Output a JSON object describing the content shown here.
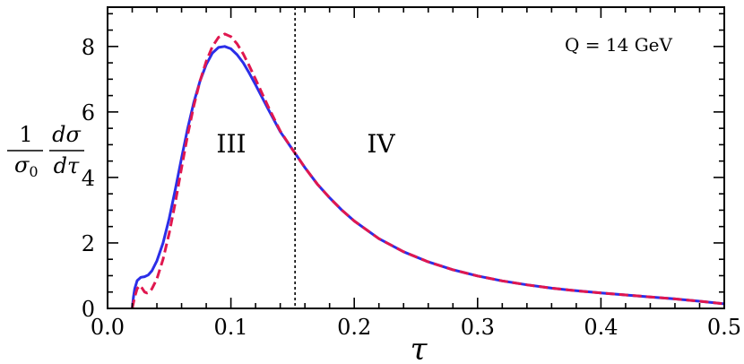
{
  "chart_data": {
    "type": "line",
    "title": "",
    "xlabel": "τ",
    "ylabel": {
      "numerator_left": "1",
      "denominator_left": "σ",
      "denominator_left_sub": "0",
      "numerator_right": "dσ",
      "denominator_right": "dτ"
    },
    "xlim": [
      0.0,
      0.5
    ],
    "ylim": [
      0,
      9.2
    ],
    "x_ticks": [
      "0.0",
      "0.1",
      "0.2",
      "0.3",
      "0.4",
      "0.5"
    ],
    "y_ticks": [
      "0",
      "2",
      "4",
      "6",
      "8"
    ],
    "grid": false,
    "annotations": {
      "energy": "Q = 14 GeV",
      "region_iii": "III",
      "region_iv": "IV",
      "divider_x": 0.152
    },
    "colors": {
      "solid": "#2b2ee8",
      "dashed": "#e0174f",
      "divider": "#000000"
    },
    "series": [
      {
        "style": "solid",
        "points": [
          [
            0.02,
            0.0
          ],
          [
            0.021,
            0.35
          ],
          [
            0.022,
            0.6
          ],
          [
            0.024,
            0.85
          ],
          [
            0.027,
            0.95
          ],
          [
            0.03,
            0.97
          ],
          [
            0.033,
            1.02
          ],
          [
            0.036,
            1.15
          ],
          [
            0.04,
            1.45
          ],
          [
            0.045,
            2.0
          ],
          [
            0.05,
            2.75
          ],
          [
            0.055,
            3.65
          ],
          [
            0.06,
            4.6
          ],
          [
            0.065,
            5.5
          ],
          [
            0.07,
            6.3
          ],
          [
            0.075,
            6.95
          ],
          [
            0.08,
            7.45
          ],
          [
            0.085,
            7.8
          ],
          [
            0.09,
            7.97
          ],
          [
            0.095,
            8.0
          ],
          [
            0.1,
            7.93
          ],
          [
            0.105,
            7.75
          ],
          [
            0.11,
            7.5
          ],
          [
            0.115,
            7.18
          ],
          [
            0.12,
            6.83
          ],
          [
            0.13,
            6.1
          ],
          [
            0.14,
            5.4
          ],
          [
            0.15,
            4.85
          ],
          [
            0.16,
            4.3
          ],
          [
            0.17,
            3.8
          ],
          [
            0.18,
            3.38
          ],
          [
            0.19,
            3.0
          ],
          [
            0.2,
            2.67
          ],
          [
            0.22,
            2.13
          ],
          [
            0.24,
            1.73
          ],
          [
            0.26,
            1.42
          ],
          [
            0.28,
            1.18
          ],
          [
            0.3,
            0.99
          ],
          [
            0.32,
            0.84
          ],
          [
            0.34,
            0.72
          ],
          [
            0.36,
            0.62
          ],
          [
            0.38,
            0.54
          ],
          [
            0.4,
            0.47
          ],
          [
            0.42,
            0.41
          ],
          [
            0.44,
            0.35
          ],
          [
            0.46,
            0.29
          ],
          [
            0.48,
            0.22
          ],
          [
            0.5,
            0.14
          ]
        ]
      },
      {
        "style": "dashed",
        "points": [
          [
            0.02,
            0.0
          ],
          [
            0.022,
            0.35
          ],
          [
            0.024,
            0.6
          ],
          [
            0.026,
            0.7
          ],
          [
            0.028,
            0.62
          ],
          [
            0.03,
            0.5
          ],
          [
            0.032,
            0.47
          ],
          [
            0.034,
            0.5
          ],
          [
            0.036,
            0.6
          ],
          [
            0.04,
            0.9
          ],
          [
            0.045,
            1.5
          ],
          [
            0.05,
            2.3
          ],
          [
            0.055,
            3.25
          ],
          [
            0.06,
            4.3
          ],
          [
            0.065,
            5.3
          ],
          [
            0.07,
            6.2
          ],
          [
            0.075,
            6.95
          ],
          [
            0.08,
            7.55
          ],
          [
            0.085,
            8.0
          ],
          [
            0.09,
            8.28
          ],
          [
            0.095,
            8.38
          ],
          [
            0.1,
            8.3
          ],
          [
            0.105,
            8.08
          ],
          [
            0.11,
            7.77
          ],
          [
            0.115,
            7.4
          ],
          [
            0.12,
            7.0
          ],
          [
            0.13,
            6.18
          ],
          [
            0.14,
            5.42
          ],
          [
            0.15,
            4.85
          ],
          [
            0.16,
            4.3
          ],
          [
            0.17,
            3.8
          ],
          [
            0.18,
            3.38
          ],
          [
            0.19,
            3.0
          ],
          [
            0.2,
            2.67
          ],
          [
            0.22,
            2.13
          ],
          [
            0.24,
            1.73
          ],
          [
            0.26,
            1.42
          ],
          [
            0.28,
            1.18
          ],
          [
            0.3,
            0.99
          ],
          [
            0.32,
            0.84
          ],
          [
            0.34,
            0.72
          ],
          [
            0.36,
            0.62
          ],
          [
            0.38,
            0.54
          ],
          [
            0.4,
            0.47
          ],
          [
            0.42,
            0.41
          ],
          [
            0.44,
            0.35
          ],
          [
            0.46,
            0.29
          ],
          [
            0.48,
            0.22
          ],
          [
            0.5,
            0.14
          ]
        ]
      }
    ]
  }
}
